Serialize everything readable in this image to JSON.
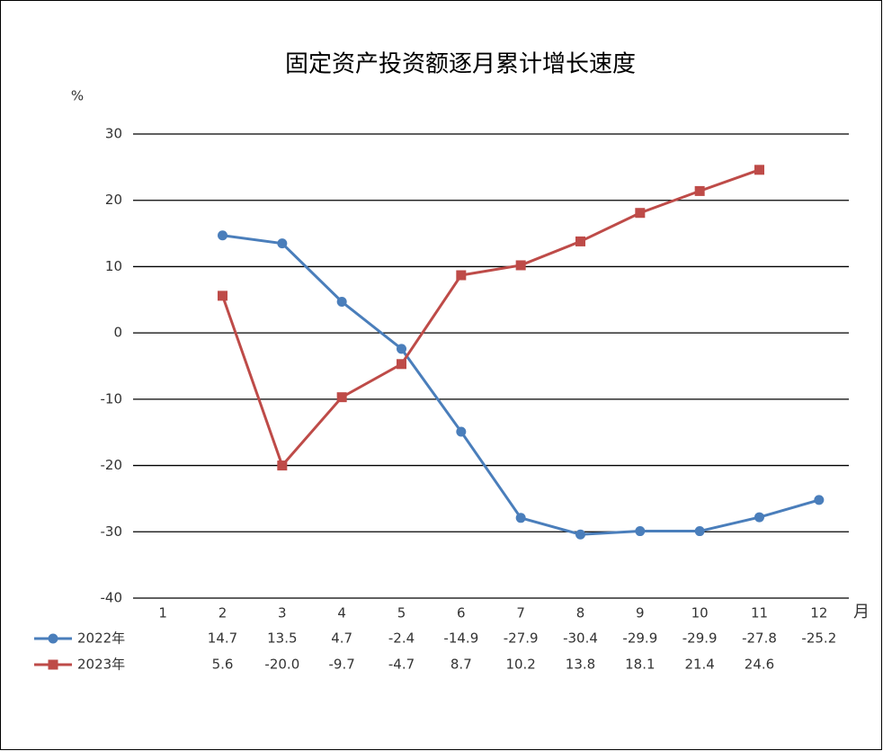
{
  "chart_data": {
    "type": "line",
    "title": "固定资产投资额逐月累计增长速度",
    "y_label": "%",
    "x_label": "月",
    "categories": [
      "1",
      "2",
      "3",
      "4",
      "5",
      "6",
      "7",
      "8",
      "9",
      "10",
      "11",
      "12"
    ],
    "series": [
      {
        "name": "2022年",
        "color": "#4a7ebb",
        "marker": "circle",
        "values": [
          null,
          14.7,
          13.5,
          4.7,
          -2.4,
          -14.9,
          -27.9,
          -30.4,
          -29.9,
          -29.9,
          -27.8,
          -25.2
        ],
        "value_labels": [
          null,
          "14.7",
          "13.5",
          "4.7",
          "-2.4",
          "-14.9",
          "-27.9",
          "-30.4",
          "-29.9",
          "-29.9",
          "-27.8",
          "-25.2"
        ]
      },
      {
        "name": "2023年",
        "color": "#be4b48",
        "marker": "square",
        "values": [
          null,
          5.6,
          -20.0,
          -9.7,
          -4.7,
          8.7,
          10.2,
          13.8,
          18.1,
          21.4,
          24.6,
          null
        ],
        "value_labels": [
          null,
          "5.6",
          "-20.0",
          "-9.7",
          "-4.7",
          "8.7",
          "10.2",
          "13.8",
          "18.1",
          "21.4",
          "24.6",
          null
        ]
      }
    ],
    "ylim": [
      -40,
      30
    ],
    "yticks": [
      -40,
      -30,
      -20,
      -10,
      0,
      10,
      20,
      30
    ],
    "grid": true
  }
}
